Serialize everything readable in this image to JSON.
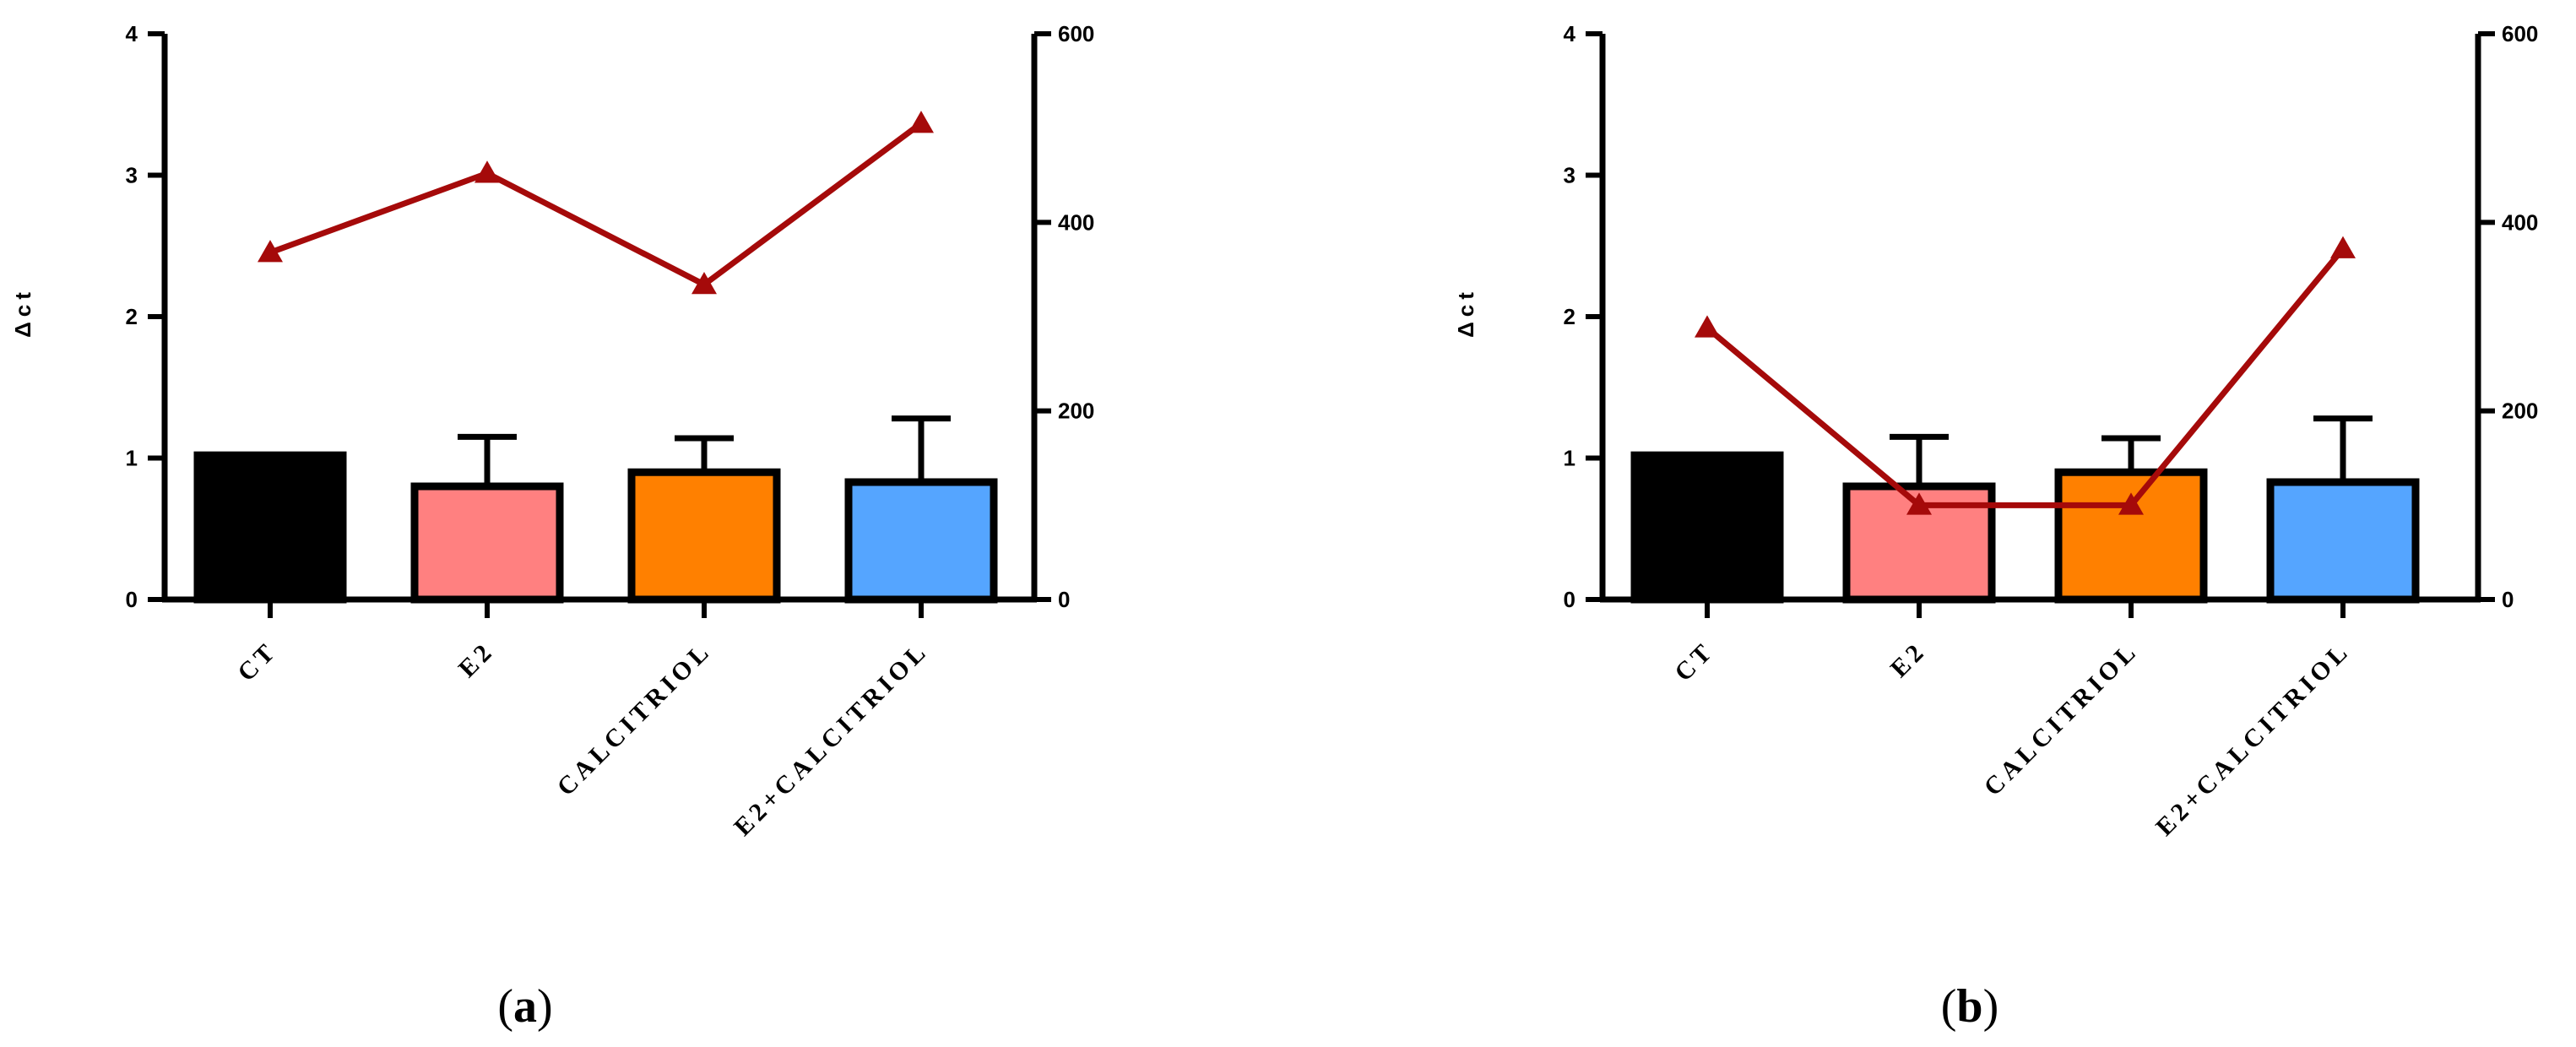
{
  "chart_data": [
    {
      "type": "bar",
      "caption": "a",
      "categories": [
        "CT",
        "E2",
        "CALCITRIOL",
        "E2+CALCITRIOL"
      ],
      "ylabel": "Δct",
      "ylim": [
        0,
        4
      ],
      "y_ticks": [
        0,
        1,
        2,
        3,
        4
      ],
      "y2lim": [
        0,
        600
      ],
      "y2_ticks": [
        0,
        200,
        400,
        600
      ],
      "bars": {
        "values": [
          1.02,
          0.8,
          0.9,
          0.83
        ],
        "error_plus": [
          0.0,
          0.35,
          0.24,
          0.45
        ],
        "colors": [
          "#000000",
          "#ff8080",
          "#ff8000",
          "#55a5ff"
        ]
      },
      "line": {
        "axis": "right",
        "values": [
          368,
          452,
          334,
          505
        ],
        "color": "#a50a0a"
      }
    },
    {
      "type": "bar",
      "caption": "b",
      "categories": [
        "CT",
        "E2",
        "CALCITRIOL",
        "E2+CALCITRIOL"
      ],
      "ylabel": "Δct",
      "ylim": [
        0,
        4
      ],
      "y_ticks": [
        0,
        1,
        2,
        3,
        4
      ],
      "y2lim": [
        0,
        600
      ],
      "y2_ticks": [
        0,
        200,
        400,
        600
      ],
      "bars": {
        "values": [
          1.02,
          0.8,
          0.9,
          0.83
        ],
        "error_plus": [
          0.0,
          0.35,
          0.24,
          0.45
        ],
        "colors": [
          "#000000",
          "#ff8080",
          "#ff8000",
          "#55a5ff"
        ]
      },
      "line": {
        "axis": "right",
        "values": [
          288,
          100,
          100,
          372
        ],
        "color": "#a50a0a"
      }
    }
  ]
}
